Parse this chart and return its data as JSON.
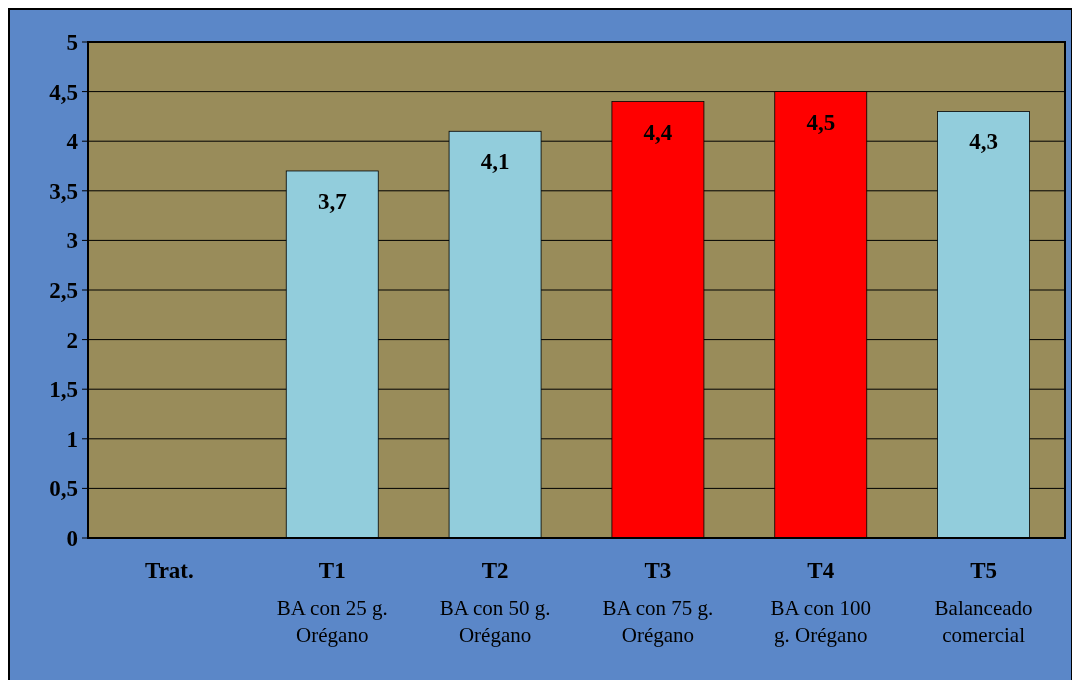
{
  "chart_data": {
    "type": "bar",
    "categories": [
      "Trat.",
      "T1\nBA con 25 g.\nOrégano",
      "T2\nBA con 50 g.\nOrégano",
      "T3\nBA con 75 g.\nOrégano",
      "T4\nBA con 100\ng. Orégano",
      "T5\nBalanceado\ncomercial"
    ],
    "values": [
      null,
      3.7,
      4.1,
      4.4,
      4.5,
      4.3
    ],
    "colors": [
      null,
      "#92cddc",
      "#92cddc",
      "#ff0000",
      "#ff0000",
      "#92cddc"
    ],
    "value_labels": [
      null,
      "3,7",
      "4,1",
      "4,4",
      "4,5",
      "4,3"
    ],
    "ylim": [
      0,
      5
    ],
    "yticks": [
      0,
      {
        "value": 0.5,
        "label": "0,5"
      },
      1,
      {
        "value": 1.5,
        "label": "1,5"
      },
      2,
      {
        "value": 2.5,
        "label": "2,5"
      },
      3,
      {
        "value": 3.5,
        "label": "3,5"
      },
      4,
      {
        "value": 4.5,
        "label": "4,5"
      },
      5
    ],
    "grid": "y"
  }
}
